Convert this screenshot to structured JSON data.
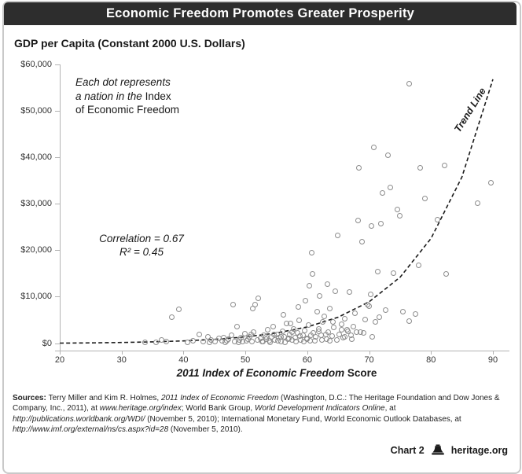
{
  "header": {
    "title": "Economic Freedom Promotes Greater Prosperity"
  },
  "colors": {
    "titlebar": "#2d2d2d",
    "dot_stroke": "#8c8c8c",
    "axis": "#b3b3b3",
    "trend": "#1a1a1a"
  },
  "chart_data": {
    "type": "scatter",
    "title": "Economic Freedom Promotes Greater Prosperity",
    "ylabel": "GDP per Capita (Constant 2000 U.S. Dollars)",
    "xlabel_italic": "2011 Index of Economic Freedom",
    "xlabel_regular": " Score",
    "xlim": [
      20,
      90
    ],
    "ylim": [
      0,
      60000
    ],
    "x_ticks": [
      "20",
      "30",
      "40",
      "50",
      "60",
      "70",
      "80",
      "90"
    ],
    "y_ticks": [
      {
        "v": 60000,
        "label": "$60,000"
      },
      {
        "v": 50000,
        "label": "$50,000"
      },
      {
        "v": 40000,
        "label": "$40,000"
      },
      {
        "v": 30000,
        "label": "$30,000"
      },
      {
        "v": 20000,
        "label": "$20,000"
      },
      {
        "v": 10000,
        "label": "$10,000"
      },
      {
        "v": 0,
        "label": "$0"
      }
    ],
    "legend": "none",
    "grid": "off",
    "annotation": {
      "lines": [
        [
          {
            "t": "Each dot represents",
            "i": 1
          }
        ],
        [
          {
            "t": "a nation in the ",
            "i": 1
          },
          {
            "t": "Index"
          }
        ],
        [
          {
            "t": "of Economic Freedom"
          }
        ]
      ]
    },
    "stats": {
      "line1": "Correlation = 0.67",
      "line2": "R² = 0.45"
    },
    "trend_label": "Trend Line",
    "trend": [
      [
        20,
        90
      ],
      [
        25,
        140
      ],
      [
        30,
        225
      ],
      [
        35,
        355
      ],
      [
        40,
        565
      ],
      [
        45,
        895
      ],
      [
        50,
        1420
      ],
      [
        55,
        2250
      ],
      [
        60,
        3570
      ],
      [
        65,
        5660
      ],
      [
        70,
        8980
      ],
      [
        75,
        14250
      ],
      [
        80,
        22600
      ],
      [
        85,
        35800
      ],
      [
        90,
        56800
      ]
    ],
    "points": [
      [
        33.8,
        300
      ],
      [
        35.5,
        250
      ],
      [
        36.4,
        800
      ],
      [
        37.2,
        400
      ],
      [
        38.1,
        5600
      ],
      [
        39.2,
        7400
      ],
      [
        40.6,
        280
      ],
      [
        41.5,
        600
      ],
      [
        42.5,
        1900
      ],
      [
        43.2,
        450
      ],
      [
        43.9,
        1500
      ],
      [
        44.2,
        300
      ],
      [
        44.5,
        800
      ],
      [
        45.1,
        350
      ],
      [
        45.7,
        1100
      ],
      [
        46.2,
        550
      ],
      [
        46.5,
        1300
      ],
      [
        46.8,
        300
      ],
      [
        47.0,
        600
      ],
      [
        47.3,
        900
      ],
      [
        47.8,
        1700
      ],
      [
        48.0,
        8400
      ],
      [
        48.3,
        450
      ],
      [
        48.7,
        3700
      ],
      [
        48.9,
        250
      ],
      [
        49.0,
        700
      ],
      [
        49.3,
        1200
      ],
      [
        49.6,
        350
      ],
      [
        49.9,
        2100
      ],
      [
        50.2,
        600
      ],
      [
        50.4,
        900
      ],
      [
        50.7,
        1500
      ],
      [
        50.9,
        1900
      ],
      [
        51.0,
        400
      ],
      [
        51.2,
        7600
      ],
      [
        51.3,
        2400
      ],
      [
        51.6,
        8300
      ],
      [
        51.9,
        700
      ],
      [
        52.1,
        9800
      ],
      [
        52.4,
        1100
      ],
      [
        52.7,
        500
      ],
      [
        52.9,
        350
      ],
      [
        53.0,
        1800
      ],
      [
        53.3,
        900
      ],
      [
        53.4,
        1500
      ],
      [
        53.6,
        2900
      ],
      [
        53.9,
        600
      ],
      [
        54.0,
        250
      ],
      [
        54.2,
        1400
      ],
      [
        54.5,
        3600
      ],
      [
        54.6,
        1900
      ],
      [
        54.8,
        800
      ],
      [
        55.1,
        2000
      ],
      [
        55.2,
        650
      ],
      [
        55.4,
        1200
      ],
      [
        55.7,
        500
      ],
      [
        55.8,
        1450
      ],
      [
        56.0,
        2700
      ],
      [
        56.1,
        6200
      ],
      [
        56.3,
        1500
      ],
      [
        56.4,
        320
      ],
      [
        56.6,
        4300
      ],
      [
        56.9,
        900
      ],
      [
        57.0,
        1150
      ],
      [
        57.2,
        1900
      ],
      [
        57.3,
        4300
      ],
      [
        57.5,
        700
      ],
      [
        57.6,
        2450
      ],
      [
        57.8,
        3200
      ],
      [
        58.1,
        1300
      ],
      [
        58.2,
        480
      ],
      [
        58.4,
        2300
      ],
      [
        58.5,
        7800
      ],
      [
        58.7,
        5000
      ],
      [
        58.8,
        1550
      ],
      [
        59.0,
        800
      ],
      [
        59.3,
        1700
      ],
      [
        59.4,
        380
      ],
      [
        59.6,
        2800
      ],
      [
        59.7,
        9200
      ],
      [
        59.9,
        1100
      ],
      [
        60.0,
        950
      ],
      [
        60.2,
        3900
      ],
      [
        60.3,
        12500
      ],
      [
        60.5,
        600
      ],
      [
        60.6,
        1750
      ],
      [
        60.7,
        19500
      ],
      [
        60.8,
        14900
      ],
      [
        61.0,
        2200
      ],
      [
        61.2,
        520
      ],
      [
        61.3,
        1400
      ],
      [
        61.6,
        6800
      ],
      [
        61.8,
        2600
      ],
      [
        61.9,
        3100
      ],
      [
        62.0,
        10200
      ],
      [
        62.2,
        1800
      ],
      [
        62.4,
        800
      ],
      [
        62.5,
        4700
      ],
      [
        62.8,
        5800
      ],
      [
        63.0,
        1900
      ],
      [
        63.1,
        1000
      ],
      [
        63.3,
        12800
      ],
      [
        63.4,
        2500
      ],
      [
        63.6,
        560
      ],
      [
        63.7,
        7600
      ],
      [
        64.0,
        1600
      ],
      [
        64.2,
        4600
      ],
      [
        64.3,
        3400
      ],
      [
        64.5,
        11300
      ],
      [
        64.8,
        750
      ],
      [
        64.9,
        23300
      ],
      [
        65.2,
        2000
      ],
      [
        65.5,
        4100
      ],
      [
        65.6,
        3000
      ],
      [
        65.8,
        1200
      ],
      [
        66.0,
        1500
      ],
      [
        66.1,
        5300
      ],
      [
        66.4,
        2900
      ],
      [
        66.6,
        2600
      ],
      [
        66.8,
        11000
      ],
      [
        67.1,
        1700
      ],
      [
        67.2,
        950
      ],
      [
        67.4,
        3700
      ],
      [
        67.7,
        6500
      ],
      [
        68.0,
        2500
      ],
      [
        68.2,
        26400
      ],
      [
        68.4,
        37800
      ],
      [
        68.6,
        2400
      ],
      [
        68.9,
        21900
      ],
      [
        69.1,
        2200
      ],
      [
        69.4,
        5200
      ],
      [
        69.8,
        8450
      ],
      [
        70.0,
        8100
      ],
      [
        70.2,
        10500
      ],
      [
        70.4,
        25300
      ],
      [
        70.5,
        1400
      ],
      [
        70.7,
        42200
      ],
      [
        71.0,
        4700
      ],
      [
        71.4,
        15500
      ],
      [
        71.7,
        5700
      ],
      [
        71.9,
        25700
      ],
      [
        72.2,
        32400
      ],
      [
        72.6,
        7200
      ],
      [
        73.0,
        40500
      ],
      [
        73.4,
        33600
      ],
      [
        73.9,
        15200
      ],
      [
        74.6,
        28900
      ],
      [
        75.0,
        27500
      ],
      [
        75.5,
        6800
      ],
      [
        76.5,
        55800
      ],
      [
        76.5,
        4900
      ],
      [
        77.5,
        6300
      ],
      [
        78.0,
        16900
      ],
      [
        78.2,
        37700
      ],
      [
        79.0,
        31200
      ],
      [
        81.1,
        26700
      ],
      [
        82.2,
        38200
      ],
      [
        82.5,
        15000
      ],
      [
        87.5,
        30200
      ],
      [
        89.7,
        34600
      ]
    ]
  },
  "sources": {
    "segments": [
      {
        "t": "Sources: ",
        "b": 1
      },
      {
        "t": "Terry Miller and Kim R. Holmes, "
      },
      {
        "t": "2011 Index of Economic Freedom",
        "i": 1
      },
      {
        "t": " (Washington, D.C.: The Heritage Foundation and Dow Jones & Company, Inc., 2011), at "
      },
      {
        "t": "www.heritage.org/index",
        "i": 1
      },
      {
        "t": "; World Bank Group, "
      },
      {
        "t": "World Development Indicators Online",
        "i": 1
      },
      {
        "t": ", at "
      },
      {
        "t": "http://publications.worldbank.org/WDI/",
        "i": 1
      },
      {
        "t": " (November 5, 2010); International Monetary Fund, World Economic Outlook Databases, at "
      },
      {
        "t": "http://www.imf.org/external/ns/cs.aspx?id=28",
        "i": 1
      },
      {
        "t": " (November 5, 2010)."
      }
    ]
  },
  "footer": {
    "chart_label": "Chart 2",
    "site": "heritage.org"
  }
}
